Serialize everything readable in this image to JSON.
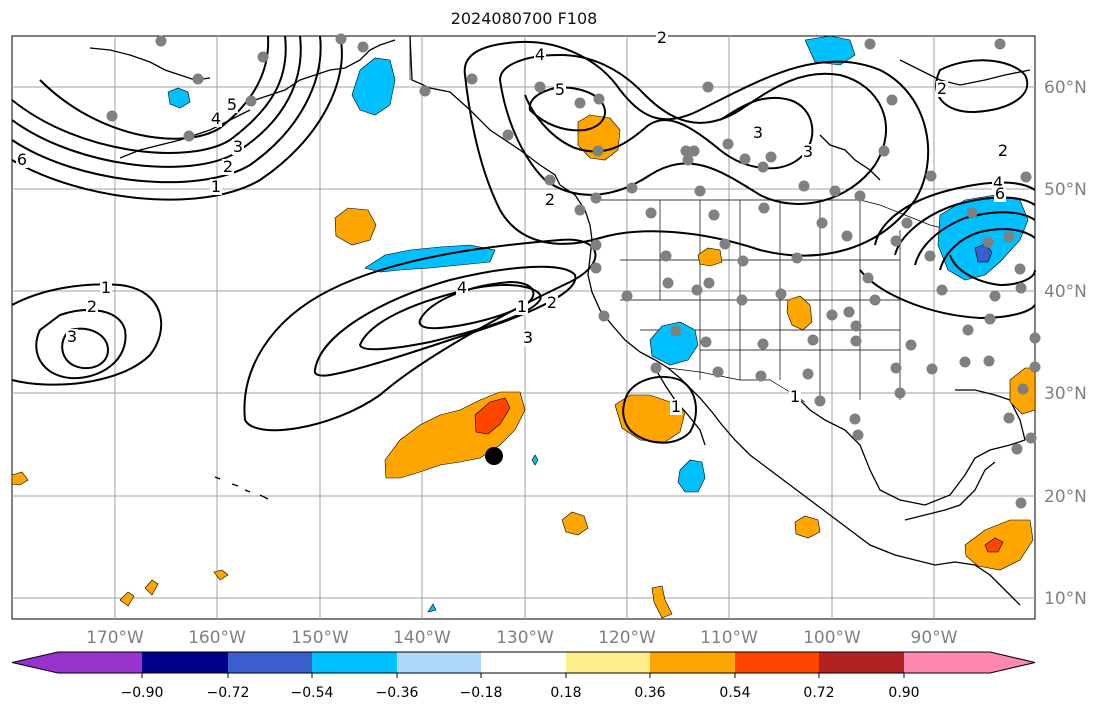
{
  "title": "2024080700 F108",
  "map": {
    "lat_labels": [
      "60°N",
      "50°N",
      "40°N",
      "30°N",
      "20°N",
      "10°N"
    ],
    "lon_labels": [
      "170°W",
      "160°W",
      "150°W",
      "140°W",
      "130°W",
      "120°W",
      "110°W",
      "100°W",
      "90°W"
    ],
    "contour_labels": [
      "1",
      "2",
      "3",
      "4",
      "5",
      "6",
      "1",
      "2",
      "3",
      "4",
      "1",
      "2",
      "3",
      "2",
      "3",
      "4",
      "5",
      "2",
      "3",
      "2",
      "4",
      "6",
      "1",
      "2",
      "1"
    ]
  },
  "colorbar": {
    "tick_labels": [
      "−0.90",
      "−0.72",
      "−0.54",
      "−0.36",
      "−0.18",
      "0.18",
      "0.36",
      "0.54",
      "0.72",
      "0.90"
    ],
    "colors": [
      "#9932cc",
      "#00008b",
      "#3a5fcd",
      "#00bfff",
      "#add8f7",
      "#ffffff",
      "#ffec8b",
      "#ffa500",
      "#ff4500",
      "#b22222",
      "#ff88b0"
    ]
  },
  "colors": {
    "ocean": "#ffffff",
    "grid": "#a0a0a0",
    "station": "#808080",
    "orange": "#ffa500",
    "red_orange": "#ff4500",
    "light_blue": "#00bfff"
  }
}
